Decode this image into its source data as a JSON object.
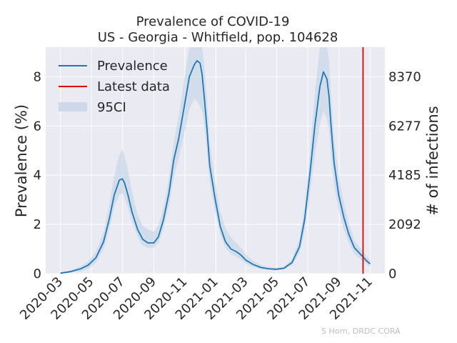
{
  "chart_data": {
    "type": "line",
    "title": "Prevalence of COVID-19",
    "subtitle": "US - Georgia - Whitfield, pop. 104628",
    "ylabel": "Prevalence (%)",
    "ylabel_right": "# of infections",
    "ylim": [
      0,
      9.2
    ],
    "xlim": [
      "2020-02-01",
      "2021-11-30"
    ],
    "x_ticks": [
      "2020-03",
      "2020-05",
      "2020-07",
      "2020-09",
      "2020-11",
      "2021-01",
      "2021-03",
      "2021-05",
      "2021-07",
      "2021-09",
      "2021-11"
    ],
    "y_ticks_left": [
      "0",
      "2",
      "4",
      "6",
      "8"
    ],
    "y_ticks_right": [
      "0",
      "2092",
      "4185",
      "6277",
      "8370"
    ],
    "grid": true,
    "legend_position": "top-left",
    "latest_data_date": "2021-10-18",
    "series": [
      {
        "name": "Prevalence",
        "color": "#1f77b4",
        "x": [
          "2020-03-01",
          "2020-03-20",
          "2020-04-10",
          "2020-04-25",
          "2020-05-10",
          "2020-05-25",
          "2020-06-05",
          "2020-06-15",
          "2020-06-25",
          "2020-07-01",
          "2020-07-05",
          "2020-07-12",
          "2020-07-20",
          "2020-07-31",
          "2020-08-10",
          "2020-08-20",
          "2020-09-01",
          "2020-09-10",
          "2020-09-20",
          "2020-10-01",
          "2020-10-10",
          "2020-10-20",
          "2020-10-31",
          "2020-11-10",
          "2020-11-20",
          "2020-11-25",
          "2020-12-01",
          "2020-12-05",
          "2020-12-10",
          "2020-12-15",
          "2020-12-20",
          "2020-12-31",
          "2021-01-10",
          "2021-01-20",
          "2021-01-31",
          "2021-02-10",
          "2021-02-20",
          "2021-03-01",
          "2021-03-15",
          "2021-03-31",
          "2021-04-15",
          "2021-04-30",
          "2021-05-15",
          "2021-05-31",
          "2021-06-15",
          "2021-06-25",
          "2021-07-05",
          "2021-07-15",
          "2021-07-25",
          "2021-08-01",
          "2021-08-08",
          "2021-08-12",
          "2021-08-16",
          "2021-08-22",
          "2021-08-31",
          "2021-09-10",
          "2021-09-20",
          "2021-10-01",
          "2021-10-15",
          "2021-10-25",
          "2021-11-01"
        ],
        "values": [
          0.02,
          0.08,
          0.2,
          0.35,
          0.65,
          1.3,
          2.2,
          3.2,
          3.8,
          3.85,
          3.7,
          3.2,
          2.5,
          1.8,
          1.4,
          1.25,
          1.25,
          1.5,
          2.2,
          3.3,
          4.6,
          5.5,
          6.8,
          8.0,
          8.5,
          8.65,
          8.55,
          8.1,
          7.0,
          5.8,
          4.4,
          3.0,
          1.9,
          1.3,
          1.0,
          0.9,
          0.75,
          0.55,
          0.38,
          0.25,
          0.2,
          0.18,
          0.22,
          0.45,
          1.1,
          2.2,
          4.0,
          6.0,
          7.6,
          8.2,
          7.9,
          7.2,
          6.0,
          4.5,
          3.2,
          2.3,
          1.6,
          1.05,
          0.75,
          0.52,
          0.4
        ]
      },
      {
        "name": "Latest data",
        "color": "#e00000"
      },
      {
        "name": "95CI",
        "color": "#c5d5e8",
        "x": [
          "2020-03-01",
          "2020-03-20",
          "2020-04-10",
          "2020-04-25",
          "2020-05-10",
          "2020-05-25",
          "2020-06-05",
          "2020-06-15",
          "2020-06-25",
          "2020-07-01",
          "2020-07-05",
          "2020-07-12",
          "2020-07-20",
          "2020-07-31",
          "2020-08-10",
          "2020-08-20",
          "2020-09-01",
          "2020-09-10",
          "2020-09-20",
          "2020-10-01",
          "2020-10-10",
          "2020-10-20",
          "2020-10-31",
          "2020-11-10",
          "2020-11-20",
          "2020-11-25",
          "2020-12-01",
          "2020-12-05",
          "2020-12-10",
          "2020-12-15",
          "2020-12-20",
          "2020-12-31",
          "2021-01-10",
          "2021-01-20",
          "2021-01-31",
          "2021-02-10",
          "2021-02-20",
          "2021-03-01",
          "2021-03-15",
          "2021-03-31",
          "2021-04-15",
          "2021-04-30",
          "2021-05-15",
          "2021-05-31",
          "2021-06-15",
          "2021-06-25",
          "2021-07-05",
          "2021-07-15",
          "2021-07-25",
          "2021-08-01",
          "2021-08-08",
          "2021-08-12",
          "2021-08-16",
          "2021-08-22",
          "2021-08-31",
          "2021-09-10",
          "2021-09-20",
          "2021-10-01",
          "2021-10-15",
          "2021-10-25",
          "2021-11-01"
        ],
        "lower": [
          0.0,
          0.04,
          0.1,
          0.2,
          0.45,
          1.0,
          1.8,
          2.7,
          3.2,
          3.25,
          3.1,
          2.7,
          2.1,
          1.5,
          1.15,
          1.05,
          1.05,
          1.25,
          1.85,
          2.8,
          3.9,
          4.7,
          5.7,
          6.7,
          7.1,
          7.0,
          6.8,
          6.6,
          5.9,
          4.9,
          3.7,
          2.5,
          1.6,
          1.05,
          0.8,
          0.7,
          0.55,
          0.4,
          0.28,
          0.18,
          0.15,
          0.14,
          0.17,
          0.35,
          0.85,
          1.75,
          3.2,
          4.8,
          6.1,
          6.6,
          6.3,
          5.8,
          4.8,
          3.6,
          2.6,
          1.8,
          1.25,
          0.8,
          0.55,
          0.38,
          0.3
        ],
        "upper": [
          0.05,
          0.12,
          0.3,
          0.5,
          0.9,
          1.7,
          2.8,
          4.0,
          4.8,
          5.05,
          4.8,
          4.2,
          3.3,
          2.4,
          1.95,
          1.8,
          1.7,
          1.95,
          2.7,
          3.9,
          5.3,
          6.4,
          7.9,
          9.2,
          9.2,
          9.2,
          9.2,
          9.2,
          8.3,
          6.9,
          5.3,
          3.7,
          2.5,
          1.85,
          1.45,
          1.25,
          1.05,
          0.78,
          0.52,
          0.35,
          0.27,
          0.23,
          0.28,
          0.58,
          1.4,
          2.7,
          4.8,
          7.3,
          9.2,
          9.2,
          9.2,
          8.7,
          7.3,
          5.5,
          4.0,
          2.9,
          2.05,
          1.35,
          0.98,
          0.7,
          0.55
        ]
      }
    ]
  },
  "credit": "S Horn, DRDC CORA"
}
